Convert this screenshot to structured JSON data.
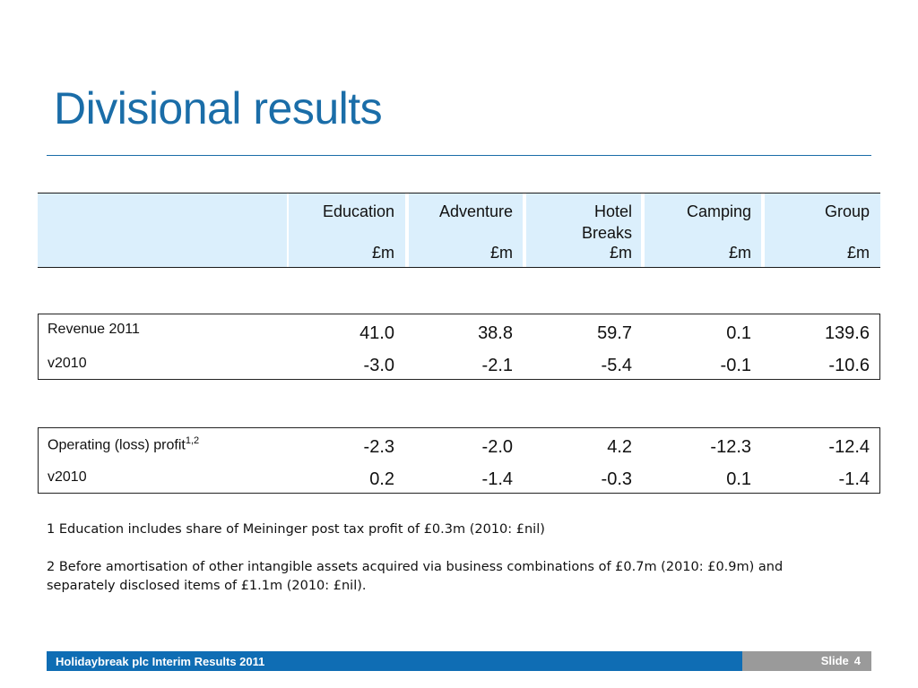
{
  "title": "Divisional results",
  "columns": [
    {
      "name": "Education",
      "unit": "£m"
    },
    {
      "name": "Adventure",
      "unit": "£m"
    },
    {
      "name": "Hotel Breaks",
      "unit": "£m"
    },
    {
      "name": "Camping",
      "unit": "£m"
    },
    {
      "name": "Group",
      "unit": "£m"
    }
  ],
  "revenue": {
    "label": "Revenue 2011",
    "values": [
      "41.0",
      "38.8",
      "59.7",
      "0.1",
      "139.6"
    ],
    "var_label": "v2010",
    "var_values": [
      "-3.0",
      "-2.1",
      "-5.4",
      "-0.1",
      "-10.6"
    ]
  },
  "operating": {
    "label": "Operating (loss) profit",
    "superscript": "1,2",
    "values": [
      "-2.3",
      "-2.0",
      "4.2",
      "-12.3",
      "-12.4"
    ],
    "var_label": "v2010",
    "var_values": [
      "0.2",
      "-1.4",
      "-0.3",
      "0.1",
      "-1.4"
    ]
  },
  "notes": [
    "1 Education includes share of Meininger post tax profit of £0.3m (2010: £nil)",
    "2 Before amortisation of other intangible assets acquired via business combinations of £0.7m (2010: £0.9m) and separately disclosed items of £1.1m (2010: £nil)."
  ],
  "footer": {
    "text": "Holidaybreak plc Interim Results 2011",
    "slide_label": "Slide",
    "slide_number": "4"
  },
  "colors": {
    "accent": "#1a6da8",
    "header_fill": "#dbeffc",
    "footer_bar": "#0f6db4",
    "slide_box": "#9a9a9a"
  }
}
